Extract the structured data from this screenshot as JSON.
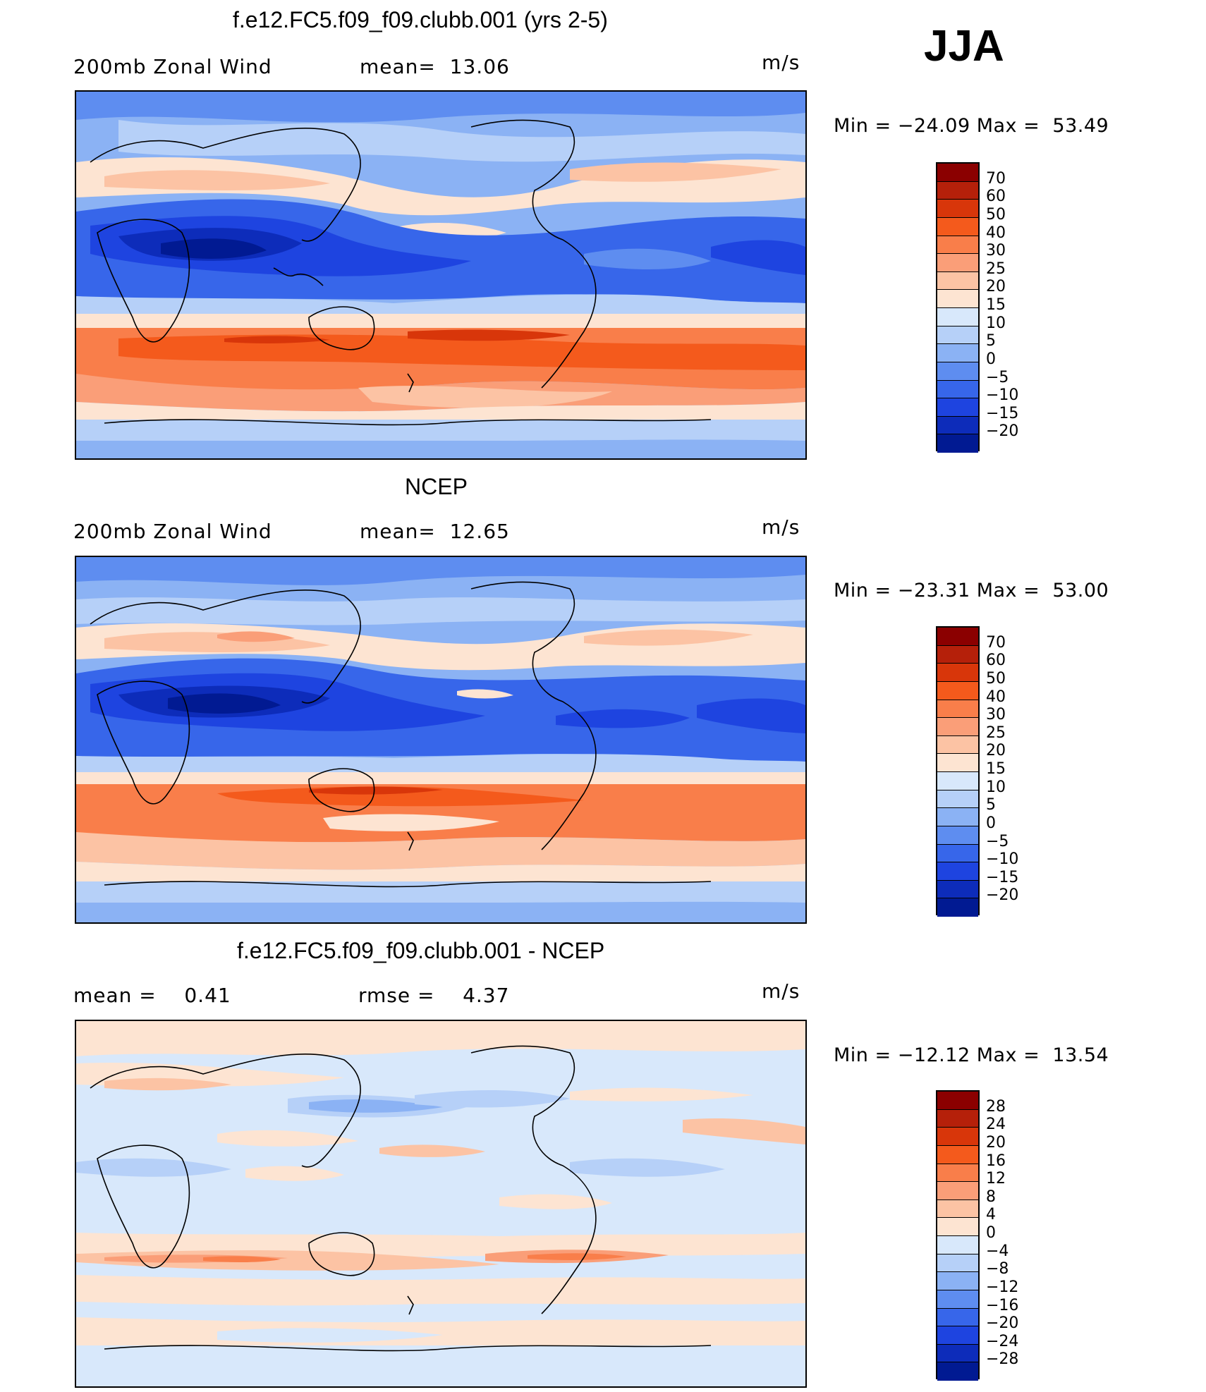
{
  "season": "JJA",
  "panels": [
    {
      "title": "f.e12.FC5.f09_f09.clubb.001 (yrs 2-5)",
      "left_label": "200mb Zonal Wind",
      "mid_label": "mean=  13.06",
      "units": "m/s",
      "minmax": "Min = −24.09 Max =  53.49",
      "colorbar": {
        "colors": [
          "#8b0000",
          "#b5200a",
          "#d8360a",
          "#f45a1c",
          "#f97e4a",
          "#fa9e78",
          "#fcc3a4",
          "#fde4d2",
          "#d8e8fb",
          "#b6d0f8",
          "#8bb2f4",
          "#5e8df0",
          "#3766ea",
          "#1e44e0",
          "#0d2cba",
          "#011a92"
        ],
        "labels": [
          "70",
          "60",
          "50",
          "40",
          "30",
          "25",
          "20",
          "15",
          "10",
          "5",
          "0",
          "−5",
          "−10",
          "−15",
          "−20"
        ]
      }
    },
    {
      "title": "NCEP",
      "left_label": "200mb Zonal Wind",
      "mid_label": "mean=  12.65",
      "units": "m/s",
      "minmax": "Min = −23.31 Max =  53.00",
      "colorbar": {
        "colors": [
          "#8b0000",
          "#b5200a",
          "#d8360a",
          "#f45a1c",
          "#f97e4a",
          "#fa9e78",
          "#fcc3a4",
          "#fde4d2",
          "#d8e8fb",
          "#b6d0f8",
          "#8bb2f4",
          "#5e8df0",
          "#3766ea",
          "#1e44e0",
          "#0d2cba",
          "#011a92"
        ],
        "labels": [
          "70",
          "60",
          "50",
          "40",
          "30",
          "25",
          "20",
          "15",
          "10",
          "5",
          "0",
          "−5",
          "−10",
          "−15",
          "−20"
        ]
      }
    },
    {
      "title": "f.e12.FC5.f09_f09.clubb.001 - NCEP",
      "left_label": "mean =    0.41",
      "mid_label": "rmse =    4.37",
      "units": "m/s",
      "minmax": "Min = −12.12 Max =  13.54",
      "colorbar": {
        "colors": [
          "#8b0000",
          "#b5200a",
          "#d8360a",
          "#f45a1c",
          "#f97e4a",
          "#fa9e78",
          "#fcc3a4",
          "#fde4d2",
          "#d8e8fb",
          "#b6d0f8",
          "#8bb2f4",
          "#5e8df0",
          "#3766ea",
          "#1e44e0",
          "#0d2cba",
          "#011a92"
        ],
        "labels": [
          "28",
          "24",
          "20",
          "16",
          "12",
          "8",
          "4",
          "0",
          "−4",
          "−8",
          "−12",
          "−16",
          "−20",
          "−24",
          "−28"
        ]
      }
    }
  ]
}
